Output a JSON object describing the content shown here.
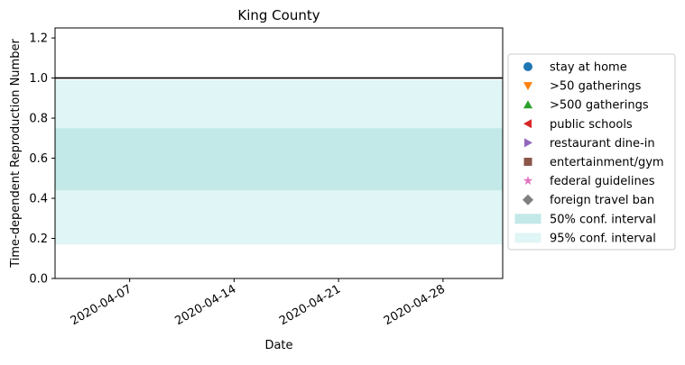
{
  "chart_data": {
    "type": "area",
    "title": "King County",
    "xlabel": "Date",
    "ylabel": "Time-dependent Reproduction Number",
    "xlim": [
      "2020-04-02",
      "2020-05-02"
    ],
    "ylim": [
      0,
      1.25
    ],
    "x_ticks": [
      "2020-04-07",
      "2020-04-14",
      "2020-04-21",
      "2020-04-28"
    ],
    "y_ticks": [
      "0.0",
      "0.2",
      "0.4",
      "0.6",
      "0.8",
      "1.0",
      "1.2"
    ],
    "reference_line": {
      "y": 1.0,
      "color": "#000000"
    },
    "bands": [
      {
        "name": "95% conf. interval",
        "low": 0.17,
        "high": 0.99,
        "color": "#e0f5f5"
      },
      {
        "name": "50% conf. interval",
        "low": 0.44,
        "high": 0.75,
        "color": "#c2e9e7"
      }
    ],
    "grid": false,
    "legend_position": "right",
    "legend": [
      {
        "label": "stay at home",
        "marker": "circle",
        "color": "#1f77b4"
      },
      {
        "label": ">50 gatherings",
        "marker": "triangle-down",
        "color": "#ff7f0e"
      },
      {
        "label": ">500 gatherings",
        "marker": "triangle-up",
        "color": "#2ca02c"
      },
      {
        "label": "public schools",
        "marker": "triangle-left",
        "color": "#d62728"
      },
      {
        "label": "restaurant dine-in",
        "marker": "triangle-right",
        "color": "#9467bd"
      },
      {
        "label": "entertainment/gym",
        "marker": "square",
        "color": "#8c564b"
      },
      {
        "label": "federal guidelines",
        "marker": "star",
        "color": "#e377c2"
      },
      {
        "label": "foreign travel ban",
        "marker": "diamond",
        "color": "#7f7f7f"
      },
      {
        "label": "50% conf. interval",
        "marker": "patch",
        "color": "#c2e9e7"
      },
      {
        "label": "95% conf. interval",
        "marker": "patch",
        "color": "#e0f5f5"
      }
    ]
  }
}
